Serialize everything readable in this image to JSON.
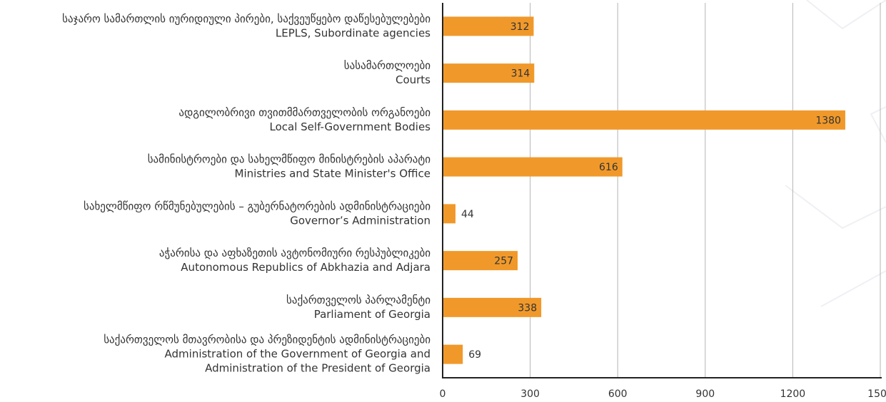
{
  "chart_data": {
    "type": "barh",
    "categories": [
      [
        "საჯარო სამართლის იურიდიული პირები, საქვეუწყებო დაწესებულებები",
        "LEPLS, Subordinate agencies"
      ],
      [
        "სასამართლოები",
        "Courts"
      ],
      [
        "ადგილობრივი თვითმმართველობის ორგანოები",
        "Local Self-Government Bodies"
      ],
      [
        "სამინისტროები და სახელმწიფო მინისტრების აპარატი",
        "Ministries and State Minister's Office"
      ],
      [
        "სახელმწიფო რწმუნებულების – გუბერნატორების ადმინისტრაციები",
        "Governor’s Administration"
      ],
      [
        "აჭარისა და აფხაზეთის ავტონომიური რესპუბლიკები",
        "Autonomous Republics of Abkhazia and Adjara"
      ],
      [
        "საქართველოს პარლამენტი",
        "Parliament of Georgia"
      ],
      [
        "საქართველოს მთავრობისა და პრეზიდენტის ადმინისტრაციები",
        "Administration of the Government of Georgia and",
        "Administration of the President of Georgia"
      ]
    ],
    "values": [
      312,
      314,
      1380,
      616,
      44,
      257,
      338,
      69
    ],
    "color": "#f0992a",
    "xlim": [
      0,
      1500
    ],
    "xticks": [
      0,
      300,
      600,
      900,
      1200,
      1500
    ],
    "grid": true
  }
}
